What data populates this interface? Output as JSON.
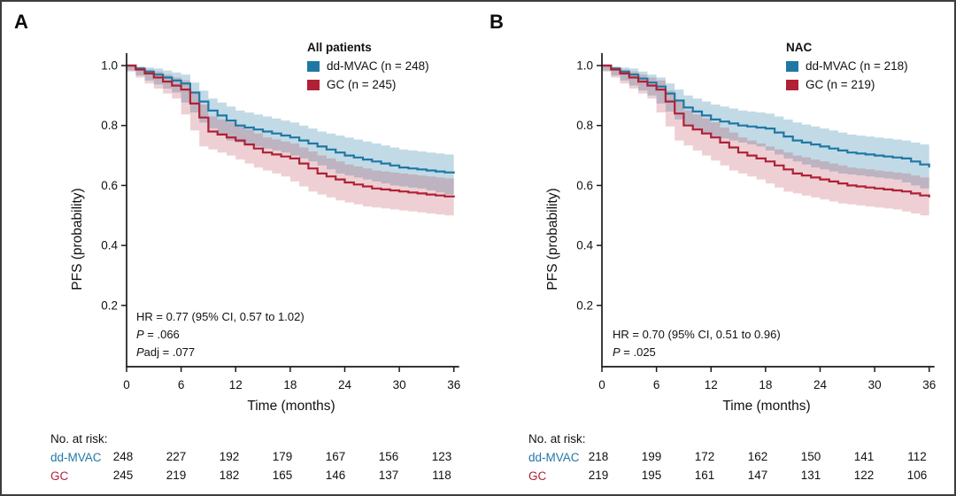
{
  "figure_type": "kaplan-meier-survival-figure",
  "accent_colors": {
    "ddmvac_blue": "#1f78a4",
    "gc_red": "#b02036",
    "axis": "#1a1a1a"
  },
  "chart_data": [
    {
      "panel": "A",
      "type": "line",
      "subtype": "kaplan-meier-step",
      "legend_title": "All patients",
      "xlabel": "Time (months)",
      "ylabel": "PFS (probability)",
      "xticks": [
        0,
        6,
        12,
        18,
        24,
        30,
        36
      ],
      "yticks": [
        "1.0",
        "0.8",
        "0.6",
        "0.4",
        "0.2"
      ],
      "xlim": [
        0,
        36
      ],
      "ylim": [
        0,
        1.0
      ],
      "grid": false,
      "legend_position": "top-right-inside",
      "x": [
        0,
        3,
        6,
        9,
        12,
        15,
        18,
        21,
        24,
        27,
        30,
        33,
        36
      ],
      "series": [
        {
          "name": "dd-MVAC",
          "label": "dd-MVAC (n = 248)",
          "color": "#1f78a4",
          "y": [
            1.0,
            0.97,
            0.94,
            0.85,
            0.8,
            0.78,
            0.76,
            0.73,
            0.7,
            0.68,
            0.66,
            0.65,
            0.64
          ],
          "ci_upper": [
            1.0,
            0.99,
            0.97,
            0.89,
            0.85,
            0.83,
            0.81,
            0.78,
            0.76,
            0.74,
            0.72,
            0.71,
            0.7
          ],
          "ci_lower": [
            1.0,
            0.95,
            0.91,
            0.81,
            0.75,
            0.73,
            0.71,
            0.68,
            0.64,
            0.62,
            0.6,
            0.59,
            0.57
          ]
        },
        {
          "name": "GC",
          "label": "GC (n = 245)",
          "color": "#b02036",
          "y": [
            1.0,
            0.96,
            0.92,
            0.78,
            0.75,
            0.71,
            0.69,
            0.64,
            0.61,
            0.59,
            0.58,
            0.57,
            0.56
          ],
          "ci_upper": [
            1.0,
            0.98,
            0.95,
            0.83,
            0.8,
            0.76,
            0.74,
            0.7,
            0.67,
            0.65,
            0.64,
            0.63,
            0.62
          ],
          "ci_lower": [
            1.0,
            0.94,
            0.89,
            0.73,
            0.7,
            0.66,
            0.63,
            0.58,
            0.55,
            0.53,
            0.52,
            0.51,
            0.5
          ]
        }
      ],
      "stats": [
        {
          "i": "",
          "t": "HR = 0.77 (95% CI, 0.57 to 1.02)"
        },
        {
          "i": "P",
          "t": " = .066"
        },
        {
          "i": "P",
          "t": "adj = .077"
        }
      ],
      "at_risk": {
        "label": "No. at risk:",
        "times": [
          0,
          6,
          12,
          18,
          24,
          30,
          36
        ],
        "rows": [
          {
            "name": "dd-MVAC",
            "color": "#1f78a4",
            "counts": [
              248,
              227,
              192,
              179,
              167,
              156,
              123
            ]
          },
          {
            "name": "GC",
            "color": "#b02036",
            "counts": [
              245,
              219,
              182,
              165,
              146,
              137,
              118
            ]
          }
        ]
      }
    },
    {
      "panel": "B",
      "type": "line",
      "subtype": "kaplan-meier-step",
      "legend_title": "NAC",
      "xlabel": "Time (months)",
      "ylabel": "PFS (probability)",
      "xticks": [
        0,
        6,
        12,
        18,
        24,
        30,
        36
      ],
      "yticks": [
        "1.0",
        "0.8",
        "0.6",
        "0.4",
        "0.2"
      ],
      "xlim": [
        0,
        36
      ],
      "ylim": [
        0,
        1.0
      ],
      "grid": false,
      "legend_position": "top-right-inside",
      "x": [
        0,
        3,
        6,
        9,
        12,
        15,
        18,
        21,
        24,
        27,
        30,
        33,
        36
      ],
      "series": [
        {
          "name": "dd-MVAC",
          "label": "dd-MVAC (n = 218)",
          "color": "#1f78a4",
          "y": [
            1.0,
            0.97,
            0.93,
            0.86,
            0.82,
            0.8,
            0.79,
            0.75,
            0.73,
            0.71,
            0.7,
            0.69,
            0.66
          ],
          "ci_upper": [
            1.0,
            0.99,
            0.96,
            0.9,
            0.87,
            0.85,
            0.84,
            0.81,
            0.79,
            0.77,
            0.76,
            0.75,
            0.73
          ],
          "ci_lower": [
            1.0,
            0.95,
            0.9,
            0.82,
            0.77,
            0.75,
            0.73,
            0.69,
            0.66,
            0.64,
            0.63,
            0.62,
            0.59
          ]
        },
        {
          "name": "GC",
          "label": "GC (n = 219)",
          "color": "#b02036",
          "y": [
            1.0,
            0.96,
            0.92,
            0.8,
            0.76,
            0.71,
            0.68,
            0.64,
            0.62,
            0.6,
            0.59,
            0.58,
            0.56
          ],
          "ci_upper": [
            1.0,
            0.98,
            0.95,
            0.85,
            0.81,
            0.76,
            0.73,
            0.7,
            0.68,
            0.66,
            0.65,
            0.64,
            0.62
          ],
          "ci_lower": [
            1.0,
            0.94,
            0.89,
            0.75,
            0.7,
            0.65,
            0.62,
            0.58,
            0.56,
            0.54,
            0.53,
            0.52,
            0.5
          ]
        }
      ],
      "stats": [
        {
          "i": "",
          "t": "HR = 0.70 (95% CI, 0.51 to 0.96)"
        },
        {
          "i": "P",
          "t": " = .025"
        }
      ],
      "at_risk": {
        "label": "No. at risk:",
        "times": [
          0,
          6,
          12,
          18,
          24,
          30,
          36
        ],
        "rows": [
          {
            "name": "dd-MVAC",
            "color": "#1f78a4",
            "counts": [
              218,
              199,
              172,
              162,
              150,
              141,
              112
            ]
          },
          {
            "name": "GC",
            "color": "#b02036",
            "counts": [
              219,
              195,
              161,
              147,
              131,
              122,
              106
            ]
          }
        ]
      }
    }
  ]
}
